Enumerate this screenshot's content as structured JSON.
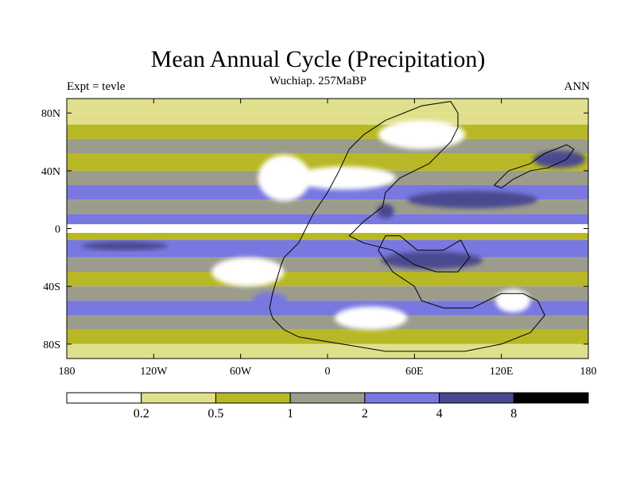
{
  "chart_data": {
    "type": "heatmap",
    "title": "Mean Annual Cycle (Precipitation)",
    "subtitle": "Wuchiap. 257MaBP",
    "left_label": "Expt = tevle",
    "right_label": "ANN",
    "x_ticks": [
      {
        "value": -180,
        "label": "180"
      },
      {
        "value": -120,
        "label": "120W"
      },
      {
        "value": -60,
        "label": "60W"
      },
      {
        "value": 0,
        "label": "0"
      },
      {
        "value": 60,
        "label": "60E"
      },
      {
        "value": 120,
        "label": "120E"
      },
      {
        "value": 180,
        "label": "180"
      }
    ],
    "y_ticks": [
      {
        "value": 80,
        "label": "80N"
      },
      {
        "value": 40,
        "label": "40N"
      },
      {
        "value": 0,
        "label": "0"
      },
      {
        "value": -40,
        "label": "40S"
      },
      {
        "value": -80,
        "label": "80S"
      }
    ],
    "xlim": [
      -180,
      180
    ],
    "ylim": [
      -90,
      90
    ],
    "colorbar": {
      "levels": [
        "0.2",
        "0.5",
        "1",
        "2",
        "4",
        "8"
      ],
      "colors": [
        "#ffffff",
        "#e0e08c",
        "#b8b826",
        "#9c9c8c",
        "#7878e0",
        "#484890",
        "#000000"
      ]
    },
    "zonal_bands": [
      {
        "lat": [
          80,
          90
        ],
        "bin": 1
      },
      {
        "lat": [
          72,
          80
        ],
        "bin": 1
      },
      {
        "lat": [
          62,
          72
        ],
        "bin": 2
      },
      {
        "lat": [
          52,
          62
        ],
        "bin": 3
      },
      {
        "lat": [
          40,
          52
        ],
        "bin": 2
      },
      {
        "lat": [
          30,
          40
        ],
        "bin": 3
      },
      {
        "lat": [
          20,
          30
        ],
        "bin": 4
      },
      {
        "lat": [
          10,
          20
        ],
        "bin": 3
      },
      {
        "lat": [
          3,
          10
        ],
        "bin": 4
      },
      {
        "lat": [
          -3,
          3
        ],
        "bin": 0
      },
      {
        "lat": [
          -8,
          -3
        ],
        "bin": 2
      },
      {
        "lat": [
          -20,
          -8
        ],
        "bin": 4
      },
      {
        "lat": [
          -30,
          -20
        ],
        "bin": 3
      },
      {
        "lat": [
          -40,
          -30
        ],
        "bin": 2
      },
      {
        "lat": [
          -50,
          -40
        ],
        "bin": 3
      },
      {
        "lat": [
          -60,
          -50
        ],
        "bin": 4
      },
      {
        "lat": [
          -70,
          -60
        ],
        "bin": 3
      },
      {
        "lat": [
          -80,
          -70
        ],
        "bin": 2
      },
      {
        "lat": [
          -90,
          -80
        ],
        "bin": 1
      }
    ],
    "regional_features": [
      {
        "lon": -30,
        "lat": 35,
        "rx": 18,
        "ry": 16,
        "bin": 0
      },
      {
        "lon": -55,
        "lat": -30,
        "rx": 25,
        "ry": 10,
        "bin": 0
      },
      {
        "lon": 12,
        "lat": 35,
        "rx": 35,
        "ry": 8,
        "bin": 0
      },
      {
        "lon": 100,
        "lat": 20,
        "rx": 45,
        "ry": 6,
        "bin": 5
      },
      {
        "lon": 72,
        "lat": -22,
        "rx": 35,
        "ry": 6,
        "bin": 5
      },
      {
        "lon": 65,
        "lat": 65,
        "rx": 30,
        "ry": 10,
        "bin": 0
      },
      {
        "lon": 30,
        "lat": -62,
        "rx": 25,
        "ry": 8,
        "bin": 0
      },
      {
        "lon": 128,
        "lat": -50,
        "rx": 12,
        "ry": 8,
        "bin": 0
      },
      {
        "lon": -40,
        "lat": -50,
        "rx": 12,
        "ry": 6,
        "bin": 4
      },
      {
        "lon": 160,
        "lat": 48,
        "rx": 18,
        "ry": 6,
        "bin": 5
      },
      {
        "lon": 40,
        "lat": 12,
        "rx": 6,
        "ry": 5,
        "bin": 5
      },
      {
        "lon": -140,
        "lat": -12,
        "rx": 30,
        "ry": 3,
        "bin": 5
      }
    ],
    "coastlines": [
      [
        [
          -30,
          -20
        ],
        [
          -20,
          -10
        ],
        [
          -15,
          0
        ],
        [
          -10,
          10
        ],
        [
          0,
          25
        ],
        [
          8,
          40
        ],
        [
          15,
          55
        ],
        [
          25,
          65
        ],
        [
          40,
          75
        ],
        [
          65,
          85
        ],
        [
          85,
          88
        ],
        [
          90,
          80
        ],
        [
          90,
          70
        ],
        [
          85,
          60
        ],
        [
          75,
          50
        ],
        [
          70,
          45
        ],
        [
          50,
          35
        ],
        [
          40,
          25
        ],
        [
          38,
          15
        ],
        [
          25,
          5
        ],
        [
          15,
          -5
        ],
        [
          25,
          -10
        ],
        [
          45,
          -15
        ],
        [
          60,
          -25
        ],
        [
          75,
          -30
        ],
        [
          90,
          -30
        ],
        [
          98,
          -20
        ],
        [
          92,
          -8
        ],
        [
          80,
          -15
        ],
        [
          62,
          -15
        ],
        [
          50,
          -5
        ],
        [
          40,
          -5
        ],
        [
          35,
          -15
        ],
        [
          45,
          -30
        ],
        [
          60,
          -40
        ],
        [
          65,
          -50
        ],
        [
          80,
          -55
        ],
        [
          100,
          -55
        ],
        [
          120,
          -45
        ],
        [
          135,
          -45
        ],
        [
          145,
          -50
        ],
        [
          150,
          -60
        ],
        [
          140,
          -72
        ],
        [
          120,
          -80
        ],
        [
          95,
          -85
        ],
        [
          70,
          -85
        ],
        [
          40,
          -85
        ],
        [
          10,
          -80
        ],
        [
          -20,
          -75
        ],
        [
          -30,
          -70
        ],
        [
          -38,
          -62
        ],
        [
          -40,
          -55
        ],
        [
          -38,
          -45
        ],
        [
          -35,
          -35
        ],
        [
          -32,
          -25
        ],
        [
          -30,
          -20
        ]
      ],
      [
        [
          115,
          30
        ],
        [
          125,
          40
        ],
        [
          140,
          45
        ],
        [
          150,
          52
        ],
        [
          165,
          58
        ],
        [
          170,
          55
        ],
        [
          165,
          48
        ],
        [
          152,
          42
        ],
        [
          140,
          40
        ],
        [
          128,
          34
        ],
        [
          120,
          28
        ],
        [
          115,
          30
        ]
      ]
    ]
  }
}
